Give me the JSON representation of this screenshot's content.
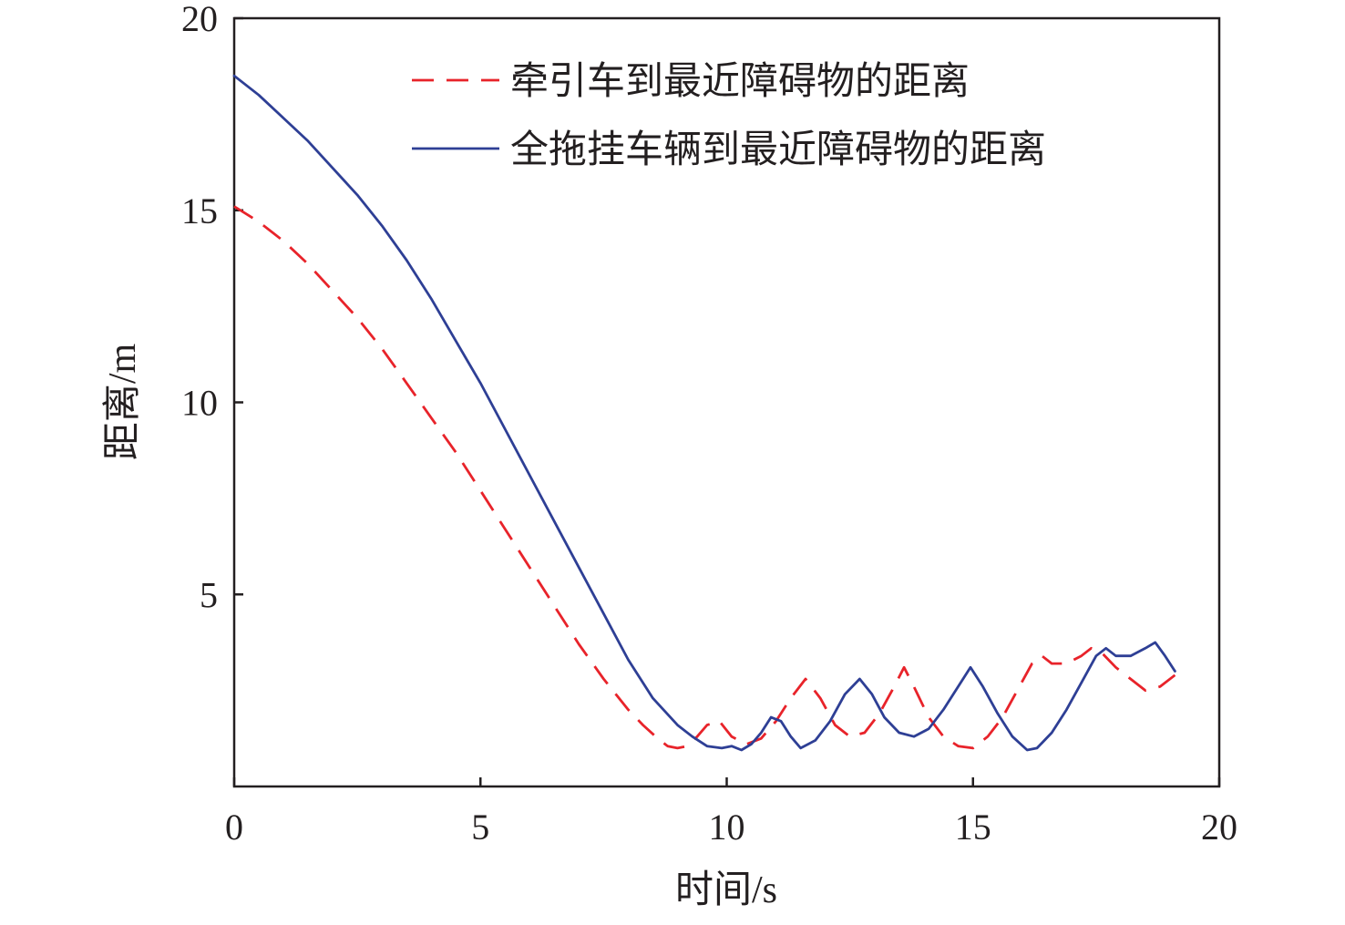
{
  "chart_data": {
    "type": "line",
    "title": "",
    "xlabel": "时间/s",
    "ylabel": "距离/m",
    "xlim": [
      0,
      20
    ],
    "ylim": [
      0,
      20
    ],
    "xticks": [
      0,
      5,
      10,
      15,
      20
    ],
    "yticks": [
      5,
      10,
      15,
      20
    ],
    "x_tick_labels": [
      "0",
      "5",
      "10",
      "15",
      "20"
    ],
    "y_tick_labels": [
      "5",
      "10",
      "15",
      "20"
    ],
    "grid": false,
    "legend_position": "top-right",
    "series": [
      {
        "name": "牵引车到最近障碍物的距离",
        "color": "#e8232a",
        "line_style": "dashed",
        "x": [
          0,
          0.5,
          1,
          1.5,
          2,
          2.5,
          3,
          3.5,
          4,
          4.5,
          5,
          5.5,
          6,
          6.5,
          7,
          7.5,
          8,
          8.3,
          8.6,
          8.8,
          9.0,
          9.2,
          9.4,
          9.6,
          9.85,
          10.1,
          10.4,
          10.7,
          11.0,
          11.3,
          11.6,
          11.9,
          12.2,
          12.5,
          12.8,
          13.1,
          13.4,
          13.6,
          13.8,
          14.1,
          14.4,
          14.7,
          15.0,
          15.3,
          15.6,
          15.9,
          16.2,
          16.4,
          16.6,
          16.9,
          17.2,
          17.4,
          17.6,
          17.9,
          18.2,
          18.5,
          18.8,
          19.1
        ],
        "values": [
          15.1,
          14.7,
          14.2,
          13.6,
          12.9,
          12.2,
          11.4,
          10.5,
          9.6,
          8.7,
          7.7,
          6.7,
          5.7,
          4.7,
          3.7,
          2.8,
          2.0,
          1.6,
          1.25,
          1.05,
          1.0,
          1.05,
          1.3,
          1.6,
          1.7,
          1.3,
          1.1,
          1.25,
          1.7,
          2.3,
          2.8,
          2.3,
          1.6,
          1.3,
          1.4,
          1.9,
          2.6,
          3.1,
          2.6,
          1.8,
          1.3,
          1.05,
          1.0,
          1.3,
          1.8,
          2.5,
          3.2,
          3.4,
          3.2,
          3.2,
          3.4,
          3.6,
          3.5,
          3.1,
          2.8,
          2.5,
          2.6,
          2.9
        ]
      },
      {
        "name": "全拖挂车辆到最近障碍物的距离",
        "color": "#2e3f95",
        "line_style": "solid",
        "x": [
          0,
          0.5,
          1,
          1.5,
          2,
          2.5,
          3,
          3.5,
          4,
          4.5,
          5,
          5.5,
          6,
          6.5,
          7,
          7.5,
          8,
          8.5,
          9,
          9.3,
          9.6,
          9.9,
          10.1,
          10.3,
          10.5,
          10.7,
          10.9,
          11.1,
          11.3,
          11.5,
          11.8,
          12.1,
          12.4,
          12.7,
          12.95,
          13.2,
          13.5,
          13.8,
          14.1,
          14.4,
          14.7,
          14.95,
          15.2,
          15.5,
          15.8,
          16.1,
          16.3,
          16.6,
          16.9,
          17.2,
          17.5,
          17.7,
          17.9,
          18.2,
          18.5,
          18.7,
          18.9,
          19.1
        ],
        "values": [
          18.5,
          18.0,
          17.4,
          16.8,
          16.1,
          15.4,
          14.6,
          13.7,
          12.7,
          11.6,
          10.5,
          9.3,
          8.1,
          6.9,
          5.7,
          4.5,
          3.3,
          2.3,
          1.6,
          1.3,
          1.05,
          1.0,
          1.05,
          0.95,
          1.1,
          1.4,
          1.8,
          1.7,
          1.3,
          1.0,
          1.2,
          1.7,
          2.4,
          2.8,
          2.4,
          1.8,
          1.4,
          1.3,
          1.5,
          2.0,
          2.6,
          3.1,
          2.6,
          1.9,
          1.3,
          0.95,
          1.0,
          1.4,
          2.0,
          2.7,
          3.4,
          3.6,
          3.4,
          3.4,
          3.6,
          3.75,
          3.4,
          3.0
        ]
      }
    ]
  }
}
